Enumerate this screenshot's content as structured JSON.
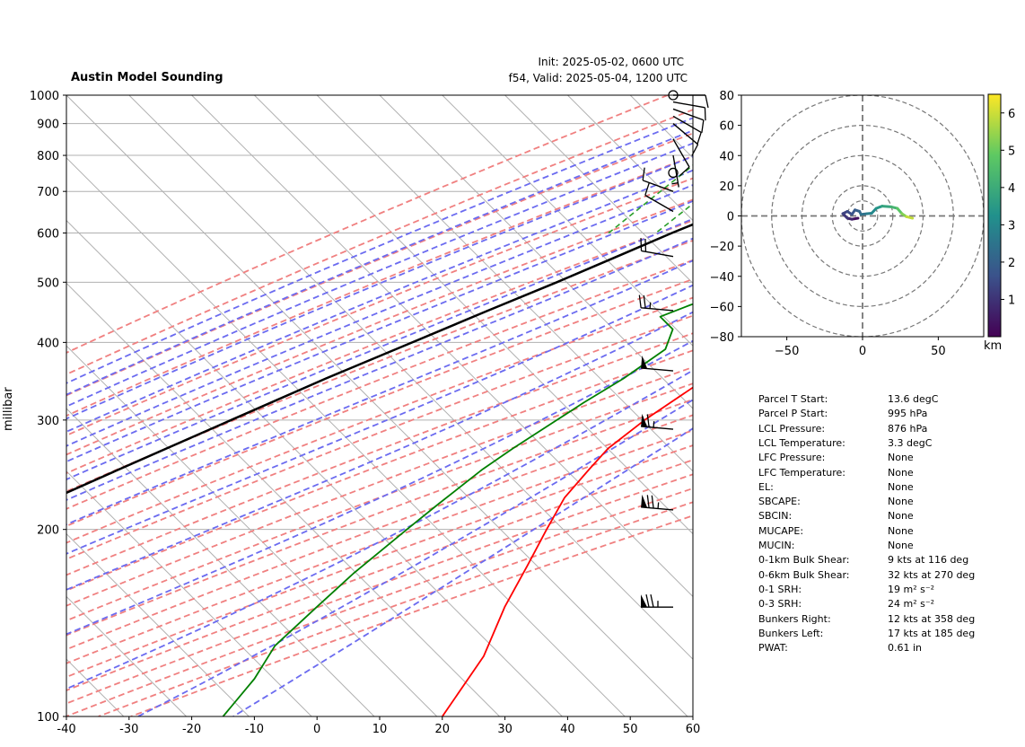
{
  "header": {
    "title": "Austin Model Sounding",
    "init": "Init: 2025-05-02, 0600 UTC",
    "valid": "f54, Valid: 2025-05-04, 1200 UTC"
  },
  "colors": {
    "temperature": "#ff0000",
    "dewpoint": "#008000",
    "parcel": "#000000",
    "dry_adiabat": "#f08080",
    "moist_adiabat": "#6b6bf0",
    "mixing_ratio": "#2ca02c",
    "isotherm": "#b0b0b0",
    "zero_isotherm": "#7b3fc4"
  },
  "chart_data": [
    {
      "type": "line",
      "subtype": "skew-t log-p",
      "ylabel": "millibar",
      "xlim": [
        -40,
        60
      ],
      "ylim": [
        1000,
        100
      ],
      "y_scale": "log",
      "x_ticks": [
        -40,
        -30,
        -20,
        -10,
        0,
        10,
        20,
        30,
        40,
        50,
        60
      ],
      "y_ticks": [
        1000,
        900,
        800,
        700,
        600,
        500,
        400,
        300,
        200,
        100
      ],
      "grid": true,
      "series": [
        {
          "key": "temperature",
          "points": [
            [
              995,
              13.6
            ],
            [
              990,
              17.5
            ],
            [
              975,
              20
            ],
            [
              950,
              19
            ],
            [
              925,
              19.5
            ],
            [
              900,
              20
            ],
            [
              850,
              20.5
            ],
            [
              800,
              21
            ],
            [
              750,
              20.8
            ],
            [
              700,
              19
            ],
            [
              650,
              17.5
            ],
            [
              600,
              17.8
            ],
            [
              550,
              18.2
            ],
            [
              500,
              17.2
            ],
            [
              450,
              14.8
            ],
            [
              400,
              11.8
            ],
            [
              350,
              8.2
            ],
            [
              300,
              5.0
            ],
            [
              270,
              3.7
            ],
            [
              250,
              4.0
            ],
            [
              225,
              4.6
            ],
            [
              200,
              6.8
            ],
            [
              175,
              9.5
            ],
            [
              150,
              12.5
            ],
            [
              125,
              17.0
            ],
            [
              100,
              20.0
            ]
          ]
        },
        {
          "key": "dewpoint",
          "points": [
            [
              995,
              5.3
            ],
            [
              975,
              5.5
            ],
            [
              950,
              5.8
            ],
            [
              925,
              6.7
            ],
            [
              900,
              6.0
            ],
            [
              875,
              2.0
            ],
            [
              850,
              -2.0
            ],
            [
              825,
              -7.0
            ],
            [
              800,
              -10.0
            ],
            [
              775,
              -14.0
            ],
            [
              760,
              -15.5
            ],
            [
              740,
              3.0
            ],
            [
              720,
              17.0
            ],
            [
              680,
              22.0
            ],
            [
              650,
              21.0
            ],
            [
              620,
              10.0
            ],
            [
              590,
              -5.0
            ],
            [
              560,
              -10.0
            ],
            [
              520,
              -3.0
            ],
            [
              490,
              1.5
            ],
            [
              460,
              -6.0
            ],
            [
              440,
              -9.0
            ],
            [
              420,
              -5.0
            ],
            [
              390,
              -3.0
            ],
            [
              350,
              -5.0
            ],
            [
              320,
              -7.5
            ],
            [
              300,
              -9.0
            ],
            [
              270,
              -11.5
            ],
            [
              250,
              -13.0
            ],
            [
              220,
              -14.5
            ],
            [
              200,
              -15.5
            ],
            [
              170,
              -17.0
            ],
            [
              150,
              -17.5
            ],
            [
              130,
              -18.0
            ],
            [
              115,
              -16.0
            ],
            [
              100,
              -15.0
            ]
          ]
        },
        {
          "key": "parcel",
          "points": [
            [
              995,
              13.6
            ],
            [
              950,
              10.7
            ],
            [
              876,
              3.3
            ],
            [
              850,
              1.0
            ],
            [
              800,
              -3.0
            ],
            [
              750,
              -7.0
            ],
            [
              700,
              -11.0
            ],
            [
              650,
              -15.5
            ],
            [
              600,
              -20.5
            ],
            [
              550,
              -25.5
            ],
            [
              500,
              -31.0
            ],
            [
              450,
              -37.5
            ],
            [
              400,
              -44.5
            ],
            [
              350,
              -52.5
            ],
            [
              300,
              -61.0
            ],
            [
              250,
              -71.0
            ],
            [
              200,
              -83.0
            ],
            [
              150,
              -97.0
            ],
            [
              120,
              -107.0
            ],
            [
              100,
              -116.0
            ]
          ]
        }
      ],
      "wind_barbs": [
        {
          "p": 1000,
          "speed": 10,
          "dir": 90
        },
        {
          "p": 975,
          "speed": 10,
          "dir": 100
        },
        {
          "p": 950,
          "speed": 10,
          "dir": 110
        },
        {
          "p": 925,
          "speed": 10,
          "dir": 120
        },
        {
          "p": 900,
          "speed": 10,
          "dir": 130
        },
        {
          "p": 850,
          "speed": 10,
          "dir": 150
        },
        {
          "p": 800,
          "speed": 5,
          "dir": 170
        },
        {
          "p": 750,
          "speed": 0,
          "dir": 0
        },
        {
          "p": 700,
          "speed": 10,
          "dir": 290
        },
        {
          "p": 650,
          "speed": 10,
          "dir": 300
        },
        {
          "p": 550,
          "speed": 20,
          "dir": 280
        },
        {
          "p": 450,
          "speed": 25,
          "dir": 275
        },
        {
          "p": 360,
          "speed": 50,
          "dir": 275
        },
        {
          "p": 290,
          "speed": 65,
          "dir": 275
        },
        {
          "p": 215,
          "speed": 75,
          "dir": 275
        },
        {
          "p": 150,
          "speed": 75,
          "dir": 270
        },
        {
          "p": 1000,
          "speed": 0,
          "dir": 0
        }
      ]
    },
    {
      "type": "line",
      "subtype": "hodograph",
      "xlim": [
        -80,
        80
      ],
      "ylim": [
        -80,
        80
      ],
      "x_ticks": [
        -50,
        0,
        50
      ],
      "y_ticks": [
        -80,
        -60,
        -40,
        -20,
        0,
        20,
        40,
        60,
        80
      ],
      "rings": [
        10,
        20,
        40,
        60,
        80
      ],
      "colorbar": {
        "label": "km",
        "ticks": [
          "1",
          "2",
          "3",
          "4",
          "5",
          "6"
        ],
        "min": 0,
        "max": 6.5
      },
      "trace": [
        [
          -3,
          -1.5,
          0.1
        ],
        [
          -7,
          -2.2,
          0.5
        ],
        [
          -10,
          -1.5,
          0.9
        ],
        [
          -13,
          1.5,
          1.2
        ],
        [
          -10,
          3.0,
          1.4
        ],
        [
          -7,
          1.0,
          1.6
        ],
        [
          -5,
          4.0,
          1.8
        ],
        [
          -2,
          3.0,
          2.0
        ],
        [
          -1,
          1.0,
          2.3
        ],
        [
          3,
          1.5,
          2.6
        ],
        [
          6,
          1.8,
          2.9
        ],
        [
          9,
          5.0,
          3.2
        ],
        [
          13,
          6.5,
          3.6
        ],
        [
          19,
          6.0,
          4.0
        ],
        [
          23,
          5.0,
          4.5
        ],
        [
          26,
          1.5,
          5.0
        ],
        [
          29,
          -0.5,
          5.5
        ],
        [
          33,
          -1.5,
          6.3
        ]
      ]
    }
  ],
  "stats": [
    {
      "label": "Parcel T Start:",
      "value": "13.6 degC"
    },
    {
      "label": "Parcel P Start:",
      "value": "995 hPa"
    },
    {
      "label": "LCL Pressure:",
      "value": "876 hPa"
    },
    {
      "label": "LCL Temperature:",
      "value": "3.3 degC"
    },
    {
      "label": "LFC Pressure:",
      "value": "None"
    },
    {
      "label": "LFC Temperature:",
      "value": "None"
    },
    {
      "label": "EL:",
      "value": "None"
    },
    {
      "label": "SBCAPE:",
      "value": "None"
    },
    {
      "label": "SBCIN:",
      "value": "None"
    },
    {
      "label": "MUCAPE:",
      "value": "None"
    },
    {
      "label": "MUCIN:",
      "value": "None"
    },
    {
      "label": "0-1km Bulk Shear:",
      "value": "9 kts at 116 deg"
    },
    {
      "label": "0-6km Bulk Shear:",
      "value": "32 kts at 270 deg"
    },
    {
      "label": "0-1 SRH:",
      "value": "19 m² s⁻²"
    },
    {
      "label": "0-3 SRH:",
      "value": "24 m² s⁻²"
    },
    {
      "label": "Bunkers Right:",
      "value": "12 kts at 358 deg"
    },
    {
      "label": "Bunkers Left:",
      "value": "17 kts at 185 deg"
    },
    {
      "label": "PWAT:",
      "value": "0.61 in"
    }
  ]
}
